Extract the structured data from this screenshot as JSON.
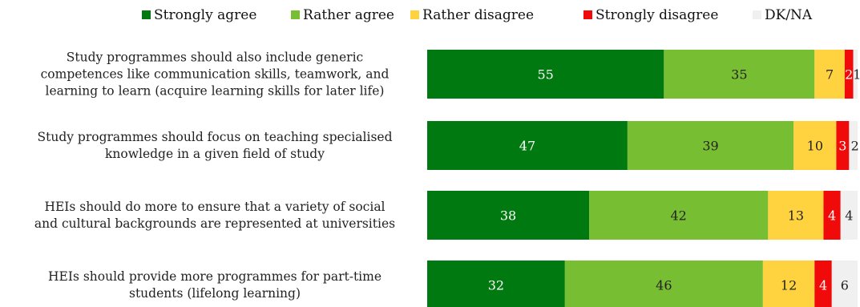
{
  "chart_data": {
    "type": "bar",
    "orientation": "horizontal",
    "stacked": true,
    "legend_position": "top",
    "grid": false,
    "categories": [
      [
        "Study programmes should also include generic",
        "competences like communication skills, teamwork, and",
        "learning to learn (acquire learning skills for later life)"
      ],
      [
        "Study programmes should focus on teaching specialised",
        "knowledge in a given field of study"
      ],
      [
        "HEIs should do more to ensure that a variety of social",
        "and cultural backgrounds are represented at universities"
      ],
      [
        "HEIs should provide more programmes for part-time",
        "students (lifelong learning)"
      ]
    ],
    "series": [
      {
        "name": "Strongly agree",
        "color": "#007A10",
        "label_color": "#ffffff",
        "values": [
          55,
          47,
          38,
          32
        ]
      },
      {
        "name": "Rather agree",
        "color": "#78BE32",
        "label_color": "#222222",
        "values": [
          35,
          39,
          42,
          46
        ]
      },
      {
        "name": "Rather disagree",
        "color": "#FFD23F",
        "label_color": "#222222",
        "values": [
          7,
          10,
          13,
          12
        ]
      },
      {
        "name": "Strongly disagree",
        "color": "#F00A0A",
        "label_color": "#ffffff",
        "values": [
          2,
          3,
          4,
          4
        ]
      },
      {
        "name": "DK/NA",
        "color": "#F0F0F0",
        "label_color": "#222222",
        "values": [
          1,
          2,
          4,
          6
        ]
      }
    ]
  }
}
